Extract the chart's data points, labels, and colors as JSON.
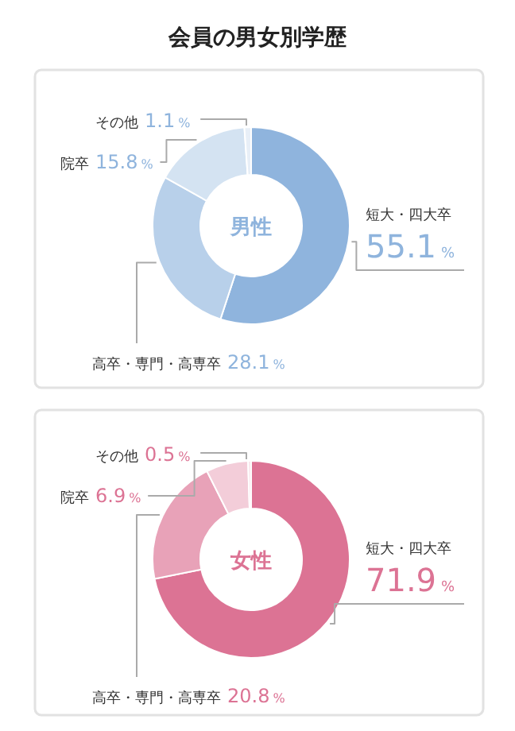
{
  "chart_data": [
    {
      "type": "donut",
      "title": "会員の男女別学歴",
      "categories": [
        "短大・四大卒",
        "高卒・専門・高専卒",
        "院卒",
        "その他"
      ],
      "values": [
        55.1,
        28.1,
        15.8,
        1.1
      ],
      "value_labels": [
        "55.1%",
        "28.1%",
        "15.8%",
        "1.1%"
      ],
      "colors": [
        "#8fb4dd",
        "#b8d0ea",
        "#d4e3f2",
        "#e8eff7"
      ],
      "annotations": [
        "男性"
      ]
    },
    {
      "type": "donut",
      "categories": [
        "短大・四大卒",
        "高卒・専門・高専卒",
        "院卒",
        "その他"
      ],
      "values": [
        71.9,
        20.8,
        6.9,
        0.5
      ],
      "value_labels": [
        "71.9%",
        "20.8%",
        "6.9%",
        "0.5%"
      ],
      "colors": [
        "#dc7394",
        "#e8a2b8",
        "#f3cdd9",
        "#f8e6ec"
      ],
      "annotations": [
        "女性"
      ]
    }
  ]
}
